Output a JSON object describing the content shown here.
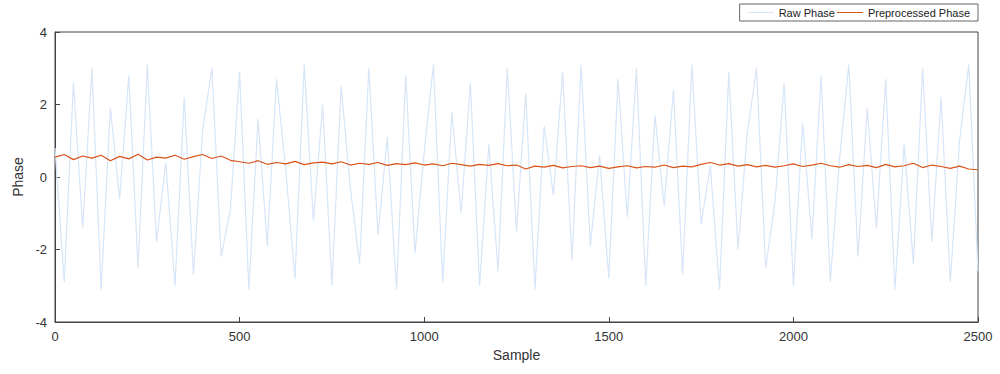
{
  "chart_data": {
    "type": "line",
    "x_label": "Sample",
    "y_label": "Phase",
    "xlim": [
      0,
      2500
    ],
    "xticks": [
      0,
      500,
      1000,
      1500,
      2000,
      2500
    ],
    "ylim": [
      -4,
      4
    ],
    "yticks": [
      -4,
      -2,
      0,
      2,
      4
    ],
    "grid": false,
    "legend": "upper right",
    "x": [
      0,
      25,
      50,
      75,
      100,
      125,
      150,
      175,
      200,
      225,
      250,
      275,
      300,
      325,
      350,
      375,
      400,
      425,
      450,
      475,
      500,
      525,
      550,
      575,
      600,
      625,
      650,
      675,
      700,
      725,
      750,
      775,
      800,
      825,
      850,
      875,
      900,
      925,
      950,
      975,
      1000,
      1025,
      1050,
      1075,
      1100,
      1125,
      1150,
      1175,
      1200,
      1225,
      1250,
      1275,
      1300,
      1325,
      1350,
      1375,
      1400,
      1425,
      1450,
      1475,
      1500,
      1525,
      1550,
      1575,
      1600,
      1625,
      1650,
      1675,
      1700,
      1725,
      1750,
      1775,
      1800,
      1825,
      1850,
      1875,
      1900,
      1925,
      1950,
      1975,
      2000,
      2025,
      2050,
      2075,
      2100,
      2125,
      2150,
      2175,
      2200,
      2225,
      2250,
      2275,
      2300,
      2325,
      2350,
      2375,
      2400,
      2425,
      2450,
      2475,
      2500
    ],
    "series": [
      {
        "name": "Raw Phase",
        "color": "#d6e6f7",
        "line_style": "solid",
        "values": [
          0.8,
          -2.9,
          2.6,
          -1.4,
          3.0,
          -3.1,
          1.9,
          -0.6,
          2.8,
          -2.5,
          3.1,
          -1.8,
          0.4,
          -3.0,
          2.2,
          -2.7,
          1.3,
          3.0,
          -2.2,
          -0.9,
          2.9,
          -3.1,
          1.6,
          -1.9,
          2.7,
          0.2,
          -2.8,
          3.1,
          -1.2,
          2.0,
          -3.0,
          2.5,
          -0.3,
          -2.4,
          3.0,
          -1.6,
          1.1,
          -3.1,
          2.8,
          -2.1,
          0.7,
          3.1,
          -2.9,
          1.8,
          -1.0,
          2.6,
          -3.0,
          0.9,
          -2.6,
          3.0,
          -1.5,
          2.3,
          -3.1,
          1.4,
          -0.5,
          2.9,
          -2.3,
          3.1,
          -1.9,
          0.6,
          -2.8,
          2.7,
          -1.1,
          3.0,
          -3.0,
          1.7,
          -0.8,
          2.4,
          -2.7,
          3.1,
          -1.3,
          0.3,
          -3.1,
          2.9,
          -2.0,
          1.2,
          3.0,
          -2.5,
          -0.7,
          2.6,
          -3.0,
          1.5,
          -1.7,
          2.8,
          -2.9,
          0.5,
          3.1,
          -2.2,
          1.9,
          -1.4,
          2.7,
          -3.1,
          0.9,
          -2.4,
          3.0,
          -1.8,
          2.2,
          -2.9,
          1.0,
          3.1,
          -2.6
        ]
      },
      {
        "name": "Preprocessed Phase",
        "color": "#d95319",
        "line_style": "solid",
        "values": [
          0.55,
          0.62,
          0.48,
          0.58,
          0.52,
          0.6,
          0.45,
          0.57,
          0.5,
          0.63,
          0.47,
          0.55,
          0.52,
          0.6,
          0.49,
          0.56,
          0.62,
          0.51,
          0.58,
          0.46,
          0.42,
          0.38,
          0.45,
          0.35,
          0.4,
          0.36,
          0.43,
          0.34,
          0.39,
          0.41,
          0.36,
          0.42,
          0.33,
          0.38,
          0.35,
          0.4,
          0.32,
          0.37,
          0.34,
          0.39,
          0.33,
          0.36,
          0.31,
          0.38,
          0.34,
          0.3,
          0.35,
          0.32,
          0.37,
          0.31,
          0.33,
          0.22,
          0.3,
          0.27,
          0.32,
          0.25,
          0.29,
          0.31,
          0.26,
          0.3,
          0.24,
          0.28,
          0.31,
          0.25,
          0.29,
          0.27,
          0.33,
          0.26,
          0.3,
          0.28,
          0.35,
          0.4,
          0.33,
          0.37,
          0.3,
          0.34,
          0.28,
          0.32,
          0.27,
          0.31,
          0.36,
          0.29,
          0.33,
          0.38,
          0.31,
          0.27,
          0.34,
          0.29,
          0.32,
          0.26,
          0.35,
          0.28,
          0.31,
          0.38,
          0.26,
          0.33,
          0.29,
          0.24,
          0.3,
          0.22,
          0.2
        ]
      }
    ]
  }
}
